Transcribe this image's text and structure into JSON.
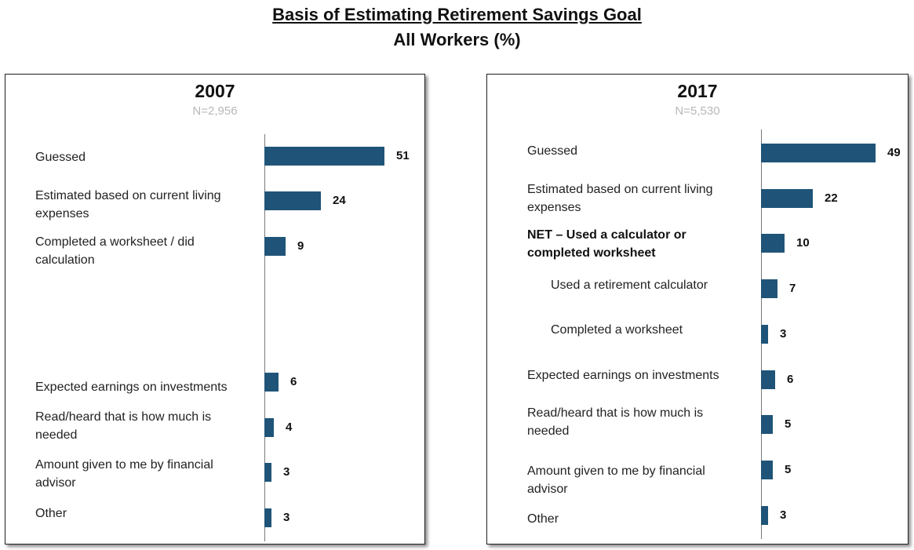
{
  "header": {
    "title": "Basis of Estimating Retirement Savings Goal",
    "subtitle": "All Workers (%)"
  },
  "colors": {
    "bar": "#1f5478",
    "axis": "#7a7a7a",
    "n_text": "#b8b8b8"
  },
  "chart_data": [
    {
      "type": "bar",
      "orientation": "horizontal",
      "title": "2007",
      "subtitle": "N=2,956",
      "categories": [
        "Guessed",
        "Estimated based on current living expenses",
        "Completed a worksheet / did calculation",
        "Expected earnings on investments",
        "Read/heard that is how much is needed",
        "Amount given to me by financial advisor",
        "Other"
      ],
      "values": [
        51,
        24,
        9,
        6,
        4,
        3,
        3
      ],
      "data_labels": [
        "51",
        "24",
        "9",
        "6",
        "4",
        "3",
        "3"
      ],
      "bold_categories": [],
      "indented_categories": [],
      "grid": false,
      "legend": "none"
    },
    {
      "type": "bar",
      "orientation": "horizontal",
      "title": "2017",
      "subtitle": "N=5,530",
      "categories": [
        "Guessed",
        "Estimated based on current living expenses",
        "NET – Used a calculator or completed worksheet",
        "Used a retirement calculator",
        "Completed a worksheet",
        "Expected earnings on investments",
        "Read/heard that is how much is needed",
        "Amount given to me by financial advisor",
        "Other"
      ],
      "values": [
        49,
        22,
        10,
        7,
        3,
        6,
        5,
        5,
        3
      ],
      "data_labels": [
        "49",
        "22",
        "10",
        "7",
        "3",
        "6",
        "5",
        "5",
        "3"
      ],
      "bold_categories": [
        "NET – Used a calculator or completed worksheet"
      ],
      "indented_categories": [
        "Used a retirement calculator",
        "Completed a worksheet"
      ],
      "grid": false,
      "legend": "none"
    }
  ]
}
